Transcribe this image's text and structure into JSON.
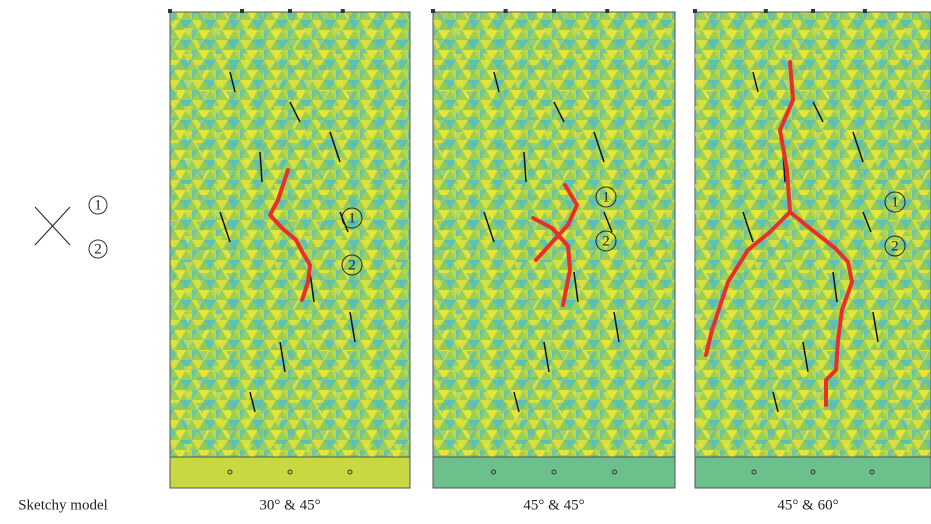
{
  "legend": {
    "caption": "Sketchy model",
    "labels": [
      "1",
      "2"
    ]
  },
  "panels": [
    {
      "caption": "30° & 45°",
      "labels": [
        "1",
        "2"
      ]
    },
    {
      "caption": "45° & 45°",
      "labels": [
        "1",
        "2"
      ]
    },
    {
      "caption": "45° & 60°",
      "labels": [
        "1",
        "2"
      ]
    }
  ]
}
